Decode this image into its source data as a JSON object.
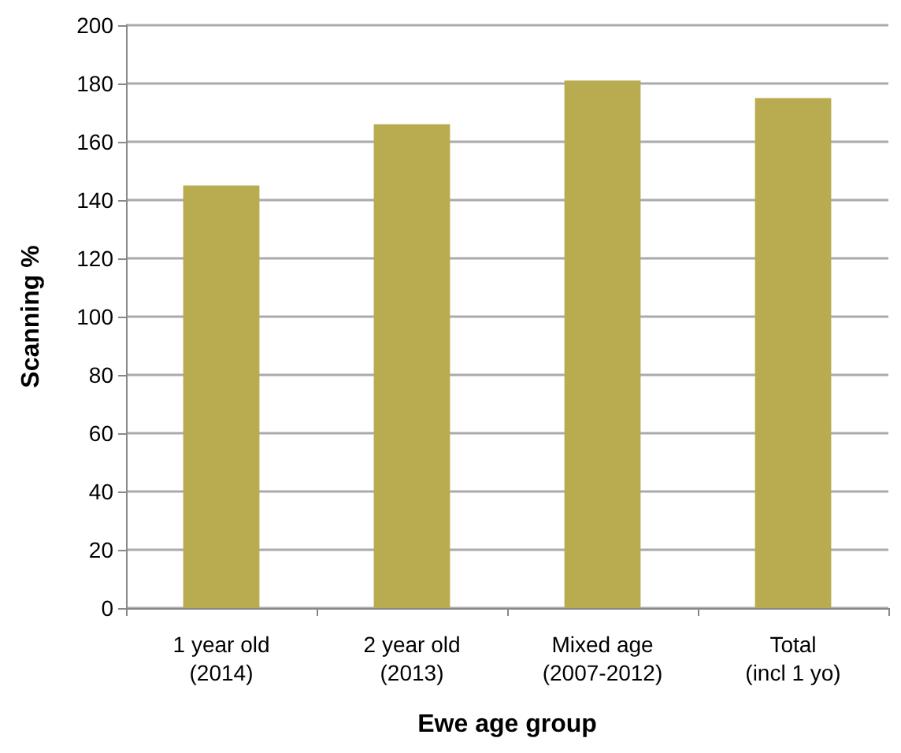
{
  "chart_data": {
    "type": "bar",
    "xlabel": "Ewe age group",
    "ylabel": "Scanning %",
    "categories": [
      "1 year old\n(2014)",
      "2 year old\n(2013)",
      "Mixed age\n(2007-2012)",
      "Total\n(incl 1 yo)"
    ],
    "values": [
      145,
      166,
      181,
      175
    ],
    "color": "#b9ab50",
    "ylim": [
      0,
      200
    ],
    "yticks": [
      0,
      20,
      40,
      60,
      80,
      100,
      120,
      140,
      160,
      180,
      200
    ],
    "grid": "y"
  }
}
